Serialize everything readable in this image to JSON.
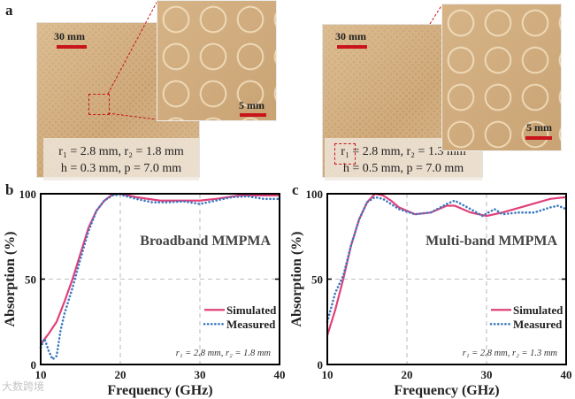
{
  "panel_a": {
    "label": "a",
    "left": {
      "scale_big": "30 mm",
      "scale_small": "5 mm",
      "line1": "r₁ = 2.8 mm, r₂ = 1.8 mm",
      "line2": "h = 0.3 mm, p = 7.0 mm"
    },
    "right": {
      "scale_big": "30 mm",
      "scale_small": "5 mm",
      "line1": "r₁ = 2.8 mm, r₂ = 1.3 mm",
      "line2": "h = 0.5 mm, p = 7.0 mm"
    }
  },
  "watermark": "大数跨境",
  "colors": {
    "simulated": "#e0407a",
    "measured": "#3a78c0",
    "scale_bar": "#c8141c"
  },
  "chart_data": [
    {
      "panel": "b",
      "type": "line",
      "title": "Broadband MMPMA",
      "xlabel": "Frequency (GHz)",
      "ylabel": "Absorption (%)",
      "xlim": [
        10,
        40
      ],
      "ylim": [
        0,
        100
      ],
      "xticks": [
        10,
        20,
        30,
        40
      ],
      "yticks": [
        0,
        50,
        100
      ],
      "grid": true,
      "legend": "right-middle",
      "annotation": "r₁ = 2.8 mm, r₂ = 1.8 mm",
      "series": [
        {
          "name": "Simulated",
          "style": "solid",
          "x": [
            10,
            11,
            12,
            13,
            14,
            15,
            16,
            17,
            18,
            19,
            20,
            22,
            25,
            28,
            30,
            32,
            35,
            38,
            40
          ],
          "y": [
            12,
            18,
            25,
            37,
            50,
            65,
            80,
            90,
            96,
            99.5,
            100,
            98,
            96,
            96,
            96,
            97,
            99,
            99,
            99
          ]
        },
        {
          "name": "Measured",
          "style": "dotted",
          "x": [
            10,
            10.5,
            11,
            11.5,
            12,
            12.5,
            13,
            14,
            15,
            16,
            17,
            18,
            19,
            20,
            22,
            24,
            26,
            28,
            30,
            32,
            34,
            36,
            38,
            40
          ],
          "y": [
            10,
            15,
            8,
            3,
            5,
            20,
            30,
            45,
            62,
            78,
            90,
            96,
            99,
            99.5,
            97,
            95,
            95,
            95.5,
            94,
            96,
            98,
            98.5,
            97,
            97
          ]
        }
      ]
    },
    {
      "panel": "c",
      "type": "line",
      "title": "Multi-band MMPMA",
      "xlabel": "Frequency (GHz)",
      "ylabel": "Absorption (%)",
      "xlim": [
        10,
        40
      ],
      "ylim": [
        0,
        100
      ],
      "xticks": [
        10,
        20,
        30,
        40
      ],
      "yticks": [
        0,
        50,
        100
      ],
      "grid": true,
      "legend": "right-middle",
      "annotation": "r₁ = 2.8 mm, r₂ = 1.3 mm",
      "series": [
        {
          "name": "Simulated",
          "style": "solid",
          "x": [
            10,
            11,
            12,
            13,
            14,
            15,
            16,
            17,
            18,
            19,
            21,
            23,
            25,
            26,
            28,
            30,
            32,
            35,
            38,
            40
          ],
          "y": [
            17,
            32,
            50,
            70,
            85,
            95,
            100,
            99,
            96,
            92,
            88,
            89,
            93,
            93,
            89,
            87,
            89,
            93,
            97,
            98
          ]
        },
        {
          "name": "Measured",
          "style": "dotted",
          "x": [
            10,
            11,
            11.5,
            12,
            13,
            14,
            15,
            16,
            17,
            19,
            21,
            23,
            25,
            26,
            28,
            29.5,
            31,
            32,
            34,
            36,
            38,
            39,
            40
          ],
          "y": [
            25,
            42,
            47,
            52,
            70,
            85,
            95,
            98,
            97,
            91,
            88,
            89,
            94,
            96,
            91,
            87,
            91,
            88,
            89,
            89,
            92,
            93,
            91
          ]
        }
      ]
    }
  ]
}
